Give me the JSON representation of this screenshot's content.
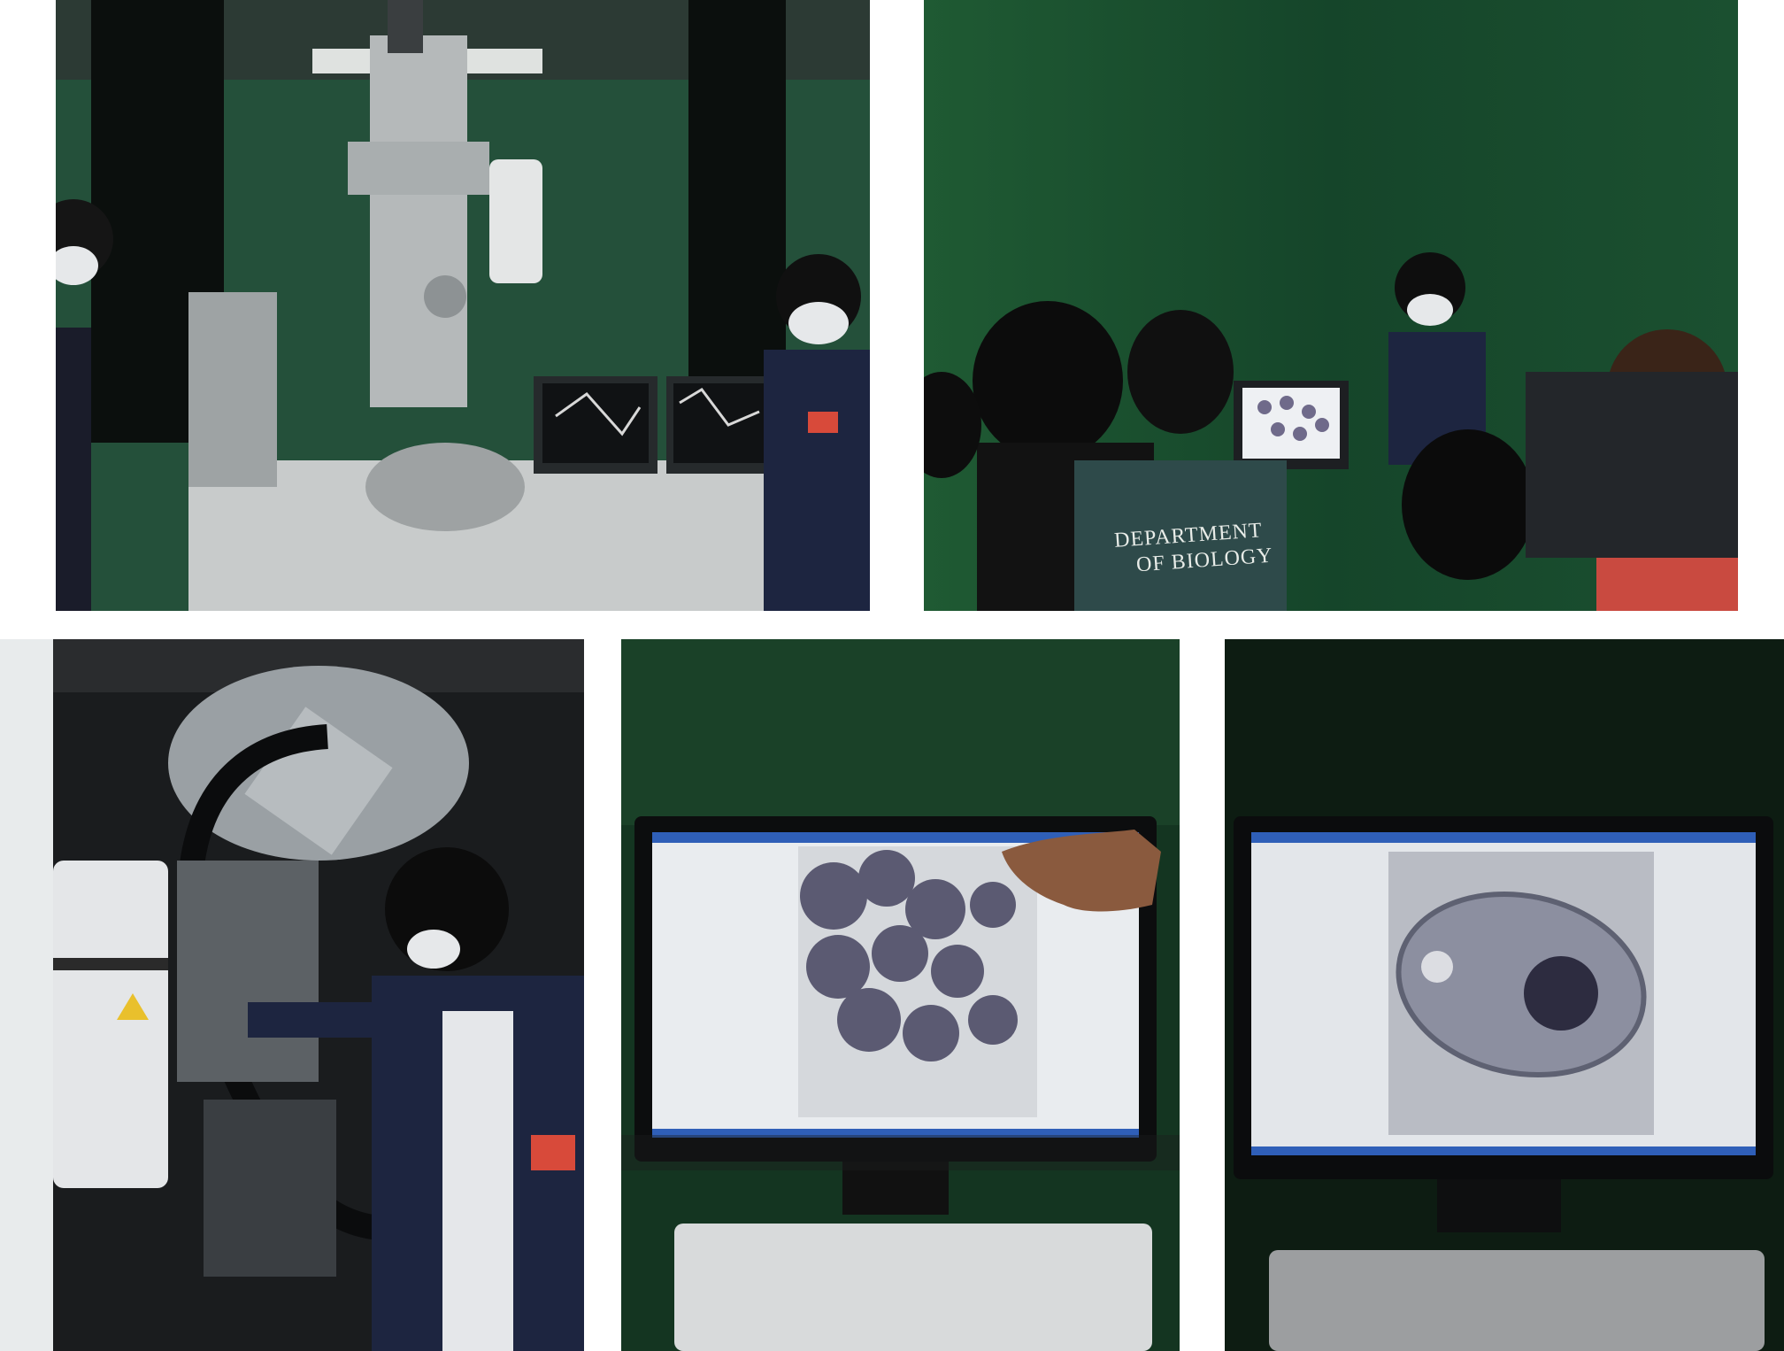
{
  "photos": [
    {
      "id": "microscope-room",
      "subject": "transmission electron microscope with operator"
    },
    {
      "id": "group-viewing",
      "subject": "students viewing monitor",
      "shirt_text_1": "DEPARTMENT",
      "shirt_text_2": "OF BIOLOGY"
    },
    {
      "id": "cryo-instrument",
      "subject": "student operating instrument interior"
    },
    {
      "id": "monitor-spheres",
      "subject": "monitor showing round particle micrograph"
    },
    {
      "id": "monitor-cell",
      "subject": "monitor showing bacterial cell micrograph"
    }
  ],
  "colors": {
    "curtain_green": "#1c4a2c",
    "curtain_dark": "#0f2a18",
    "instrument_gray": "#b8bcbd",
    "screen_white": "#e9ecef",
    "jacket_navy": "#1d2540"
  }
}
